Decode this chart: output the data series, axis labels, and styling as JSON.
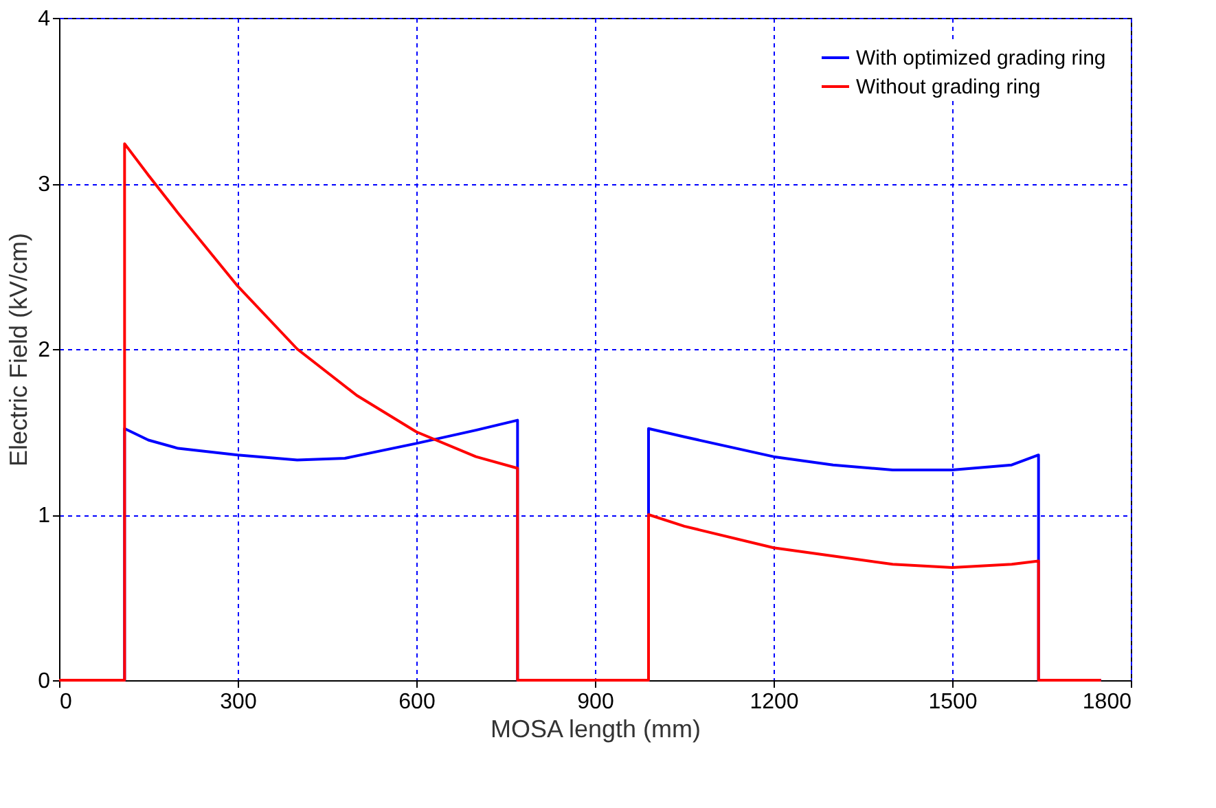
{
  "chart_data": {
    "type": "line",
    "xlabel": "MOSA length (mm)",
    "ylabel": "Electric Field (kV/cm)",
    "xlim": [
      0,
      1800
    ],
    "xticks": [
      0,
      300,
      600,
      900,
      1200,
      1500,
      1800
    ],
    "ylim": [
      0,
      4
    ],
    "yticks": [
      0,
      1,
      2,
      3,
      4
    ],
    "grid": true,
    "legend": "top right",
    "line_style": "solid",
    "marker": "none",
    "series": [
      {
        "name": "With optimized grading ring",
        "color": "#0000ff",
        "x": [
          0,
          110,
          110,
          150,
          200,
          300,
          400,
          480,
          600,
          700,
          770,
          770,
          990,
          990,
          1050,
          1200,
          1300,
          1400,
          1500,
          1600,
          1645,
          1645,
          1750
        ],
        "values": [
          0,
          0,
          1.52,
          1.45,
          1.4,
          1.36,
          1.33,
          1.34,
          1.43,
          1.51,
          1.57,
          0,
          0,
          1.52,
          1.47,
          1.35,
          1.3,
          1.27,
          1.27,
          1.3,
          1.36,
          0,
          0
        ]
      },
      {
        "name": "Without grading ring",
        "color": "#ff0000",
        "x": [
          0,
          110,
          110,
          150,
          200,
          300,
          400,
          500,
          600,
          700,
          770,
          770,
          990,
          990,
          1050,
          1200,
          1300,
          1400,
          1500,
          1600,
          1645,
          1645,
          1750
        ],
        "values": [
          0,
          0,
          3.24,
          3.05,
          2.82,
          2.38,
          2.0,
          1.72,
          1.5,
          1.35,
          1.28,
          0,
          0,
          1.0,
          0.93,
          0.8,
          0.75,
          0.7,
          0.68,
          0.7,
          0.72,
          0,
          0
        ]
      }
    ]
  }
}
